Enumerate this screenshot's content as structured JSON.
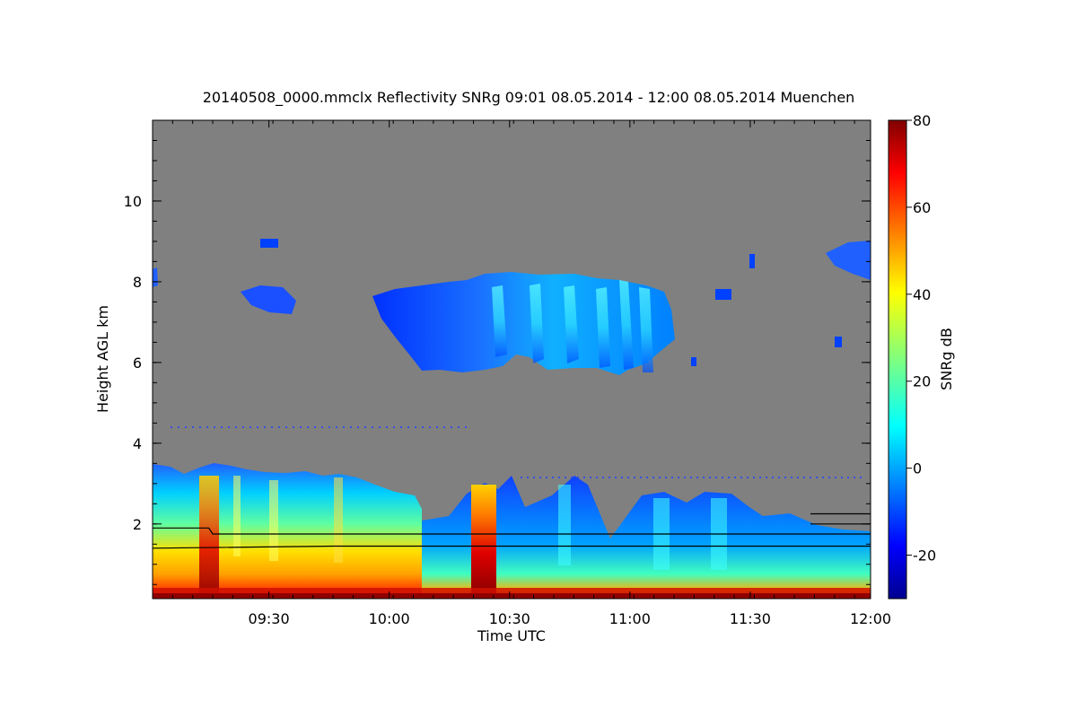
{
  "chart_data": {
    "type": "heatmap",
    "title": "20140508_0000.mmclx Reflectivity SNRg   09:01 08.05.2014 - 12:00 08.05.2014 Muenchen",
    "xlabel": "Time UTC",
    "ylabel": "Height AGL km",
    "xlim": [
      "09:01",
      "12:00"
    ],
    "ylim": [
      0.15,
      12
    ],
    "x_ticks": [
      "09:30",
      "10:00",
      "10:30",
      "11:00",
      "11:30",
      "12:00"
    ],
    "y_ticks": [
      "2",
      "4",
      "6",
      "8",
      "10"
    ],
    "colorbar": {
      "label": "SNRg dB",
      "range": [
        -30,
        80
      ],
      "ticks": [
        "-20",
        "0",
        "20",
        "40",
        "60",
        "80"
      ],
      "colormap": "jet"
    },
    "background_color": "#808080",
    "features": [
      {
        "kind": "boundary-layer echo",
        "time_start": "09:01",
        "time_end": "12:00",
        "height_km": [
          0.15,
          3.6
        ],
        "snr_db": [
          -10,
          70
        ]
      },
      {
        "kind": "strong echo column",
        "time_center": "09:15",
        "height_km": [
          0.15,
          3.3
        ],
        "snr_db": [
          30,
          70
        ]
      },
      {
        "kind": "strong echo column",
        "time_center": "10:25",
        "height_km": [
          0.15,
          3.0
        ],
        "snr_db": [
          30,
          70
        ]
      },
      {
        "kind": "mid-level cloud",
        "time_start": "09:55",
        "time_end": "11:12",
        "height_km": [
          5.6,
          8.3
        ],
        "snr_db": [
          -25,
          15
        ]
      },
      {
        "kind": "mid-level cloud",
        "time_start": "09:22",
        "time_end": "09:36",
        "height_km": [
          7.0,
          7.8
        ],
        "snr_db": [
          -25,
          5
        ]
      },
      {
        "kind": "mid-level cloud",
        "time_start": "11:52",
        "time_end": "12:00",
        "height_km": [
          7.9,
          9.0
        ],
        "snr_db": [
          -25,
          5
        ]
      }
    ],
    "overlay_lines": [
      {
        "name": "",
        "color": "#000000",
        "points": [
          [
            "09:01",
            1.9
          ],
          [
            "09:15",
            1.9
          ],
          [
            "09:16",
            1.75
          ],
          [
            "12:00",
            1.75
          ]
        ]
      },
      {
        "name": "",
        "color": "#000000",
        "points": [
          [
            "09:01",
            1.4
          ],
          [
            "09:46",
            1.45
          ],
          [
            "12:00",
            1.45
          ]
        ]
      },
      {
        "name": "",
        "color": "#000000",
        "points": [
          [
            "11:45",
            2.0
          ],
          [
            "12:00",
            2.0
          ]
        ]
      },
      {
        "name": "",
        "color": "#000000",
        "points": [
          [
            "11:45",
            2.25
          ],
          [
            "12:00",
            2.25
          ]
        ]
      }
    ]
  }
}
